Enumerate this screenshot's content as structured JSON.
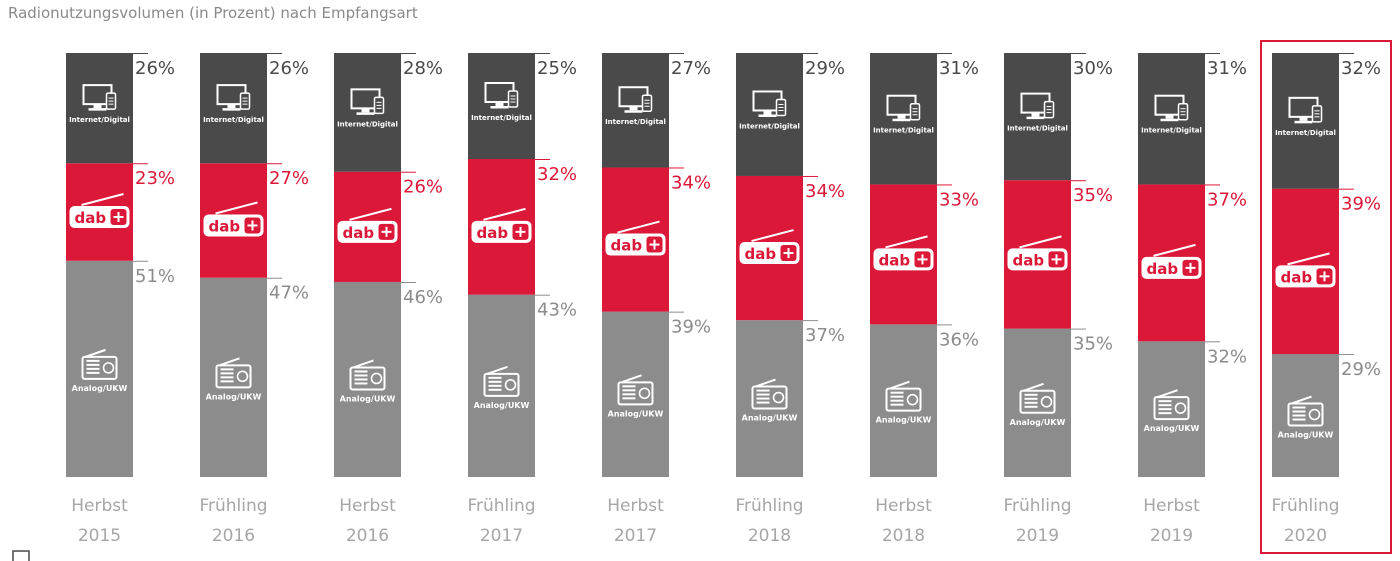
{
  "chart_data": {
    "type": "bar",
    "stacked": true,
    "title": "Radionutzungsvolumen (in Prozent) nach Empfangsart",
    "categories": [
      [
        "Herbst",
        "2015"
      ],
      [
        "Frühling",
        "2016"
      ],
      [
        "Herbst",
        "2016"
      ],
      [
        "Frühling",
        "2017"
      ],
      [
        "Herbst",
        "2017"
      ],
      [
        "Frühling",
        "2018"
      ],
      [
        "Herbst",
        "2018"
      ],
      [
        "Frühling",
        "2019"
      ],
      [
        "Herbst",
        "2019"
      ],
      [
        "Frühling",
        "2020"
      ]
    ],
    "series": [
      {
        "name": "Analog/UKW",
        "color": "#8c8c8c",
        "values": [
          51,
          47,
          46,
          43,
          39,
          37,
          36,
          35,
          32,
          29
        ]
      },
      {
        "name": "dab+",
        "color": "#dc1839",
        "values": [
          23,
          27,
          26,
          32,
          34,
          34,
          33,
          35,
          37,
          39
        ]
      },
      {
        "name": "Internet/Digital",
        "color": "#4a4a4a",
        "values": [
          26,
          26,
          28,
          25,
          27,
          29,
          31,
          30,
          31,
          32
        ]
      }
    ],
    "value_suffix": "%",
    "icons": [
      "radio-icon",
      "dab-logo-icon",
      "computer-icon"
    ],
    "highlighted_category": 9,
    "highlight_color": "#dc1839",
    "label_colors": {
      "Analog/UKW": "#8c8c8c",
      "dab+": "#dc1839",
      "Internet/Digital": "#4a4a4a"
    }
  }
}
